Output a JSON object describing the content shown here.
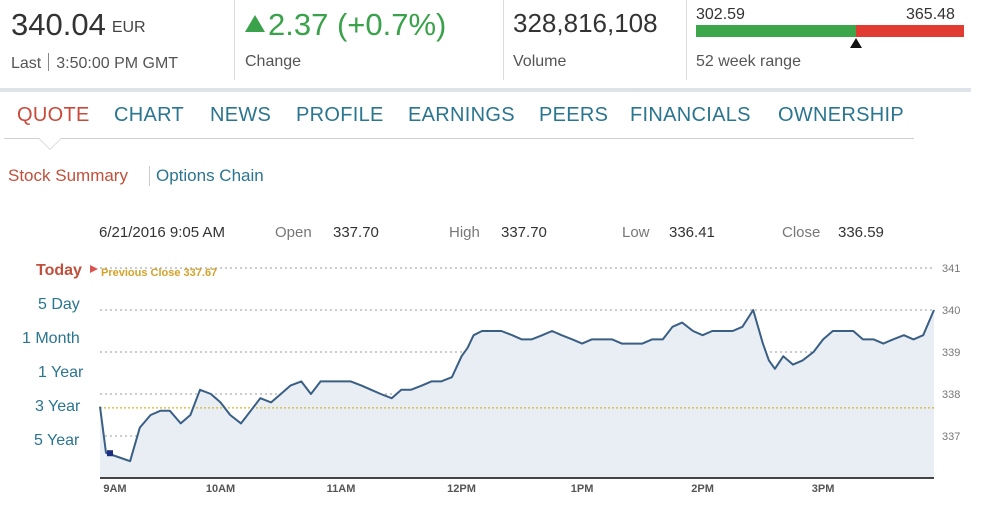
{
  "summary": {
    "price": "340.04",
    "currency": "EUR",
    "last_label": "Last",
    "last_time": "3:50:00 PM GMT",
    "change_value": "2.37 (+0.7%)",
    "change_label": "Change",
    "volume_value": "328,816,108",
    "volume_label": "Volume",
    "range_low": "302.59",
    "range_high": "365.48",
    "range_label": "52 week range",
    "range_position": 0.597,
    "colors": {
      "up": "#3aa24a",
      "bar_low": "#3ba64a",
      "bar_high": "#e03c31"
    }
  },
  "tabs": [
    {
      "label": "QUOTE",
      "active": true
    },
    {
      "label": "CHART",
      "active": false
    },
    {
      "label": "NEWS",
      "active": false
    },
    {
      "label": "PROFILE",
      "active": false
    },
    {
      "label": "EARNINGS",
      "active": false
    },
    {
      "label": "PEERS",
      "active": false
    },
    {
      "label": "FINANCIALS",
      "active": false
    },
    {
      "label": "OWNERSHIP",
      "active": false
    }
  ],
  "subtabs": [
    {
      "label": "Stock Summary",
      "active": true
    },
    {
      "label": "Options Chain",
      "active": false
    }
  ],
  "chart_info": {
    "datetime": "6/21/2016 9:05 AM",
    "open_label": "Open",
    "open_value": "337.70",
    "high_label": "High",
    "high_value": "337.70",
    "low_label": "Low",
    "low_value": "336.41",
    "close_label": "Close",
    "close_value": "336.59"
  },
  "range_links": [
    {
      "label": "Today",
      "active": true
    },
    {
      "label": "5 Day",
      "active": false
    },
    {
      "label": "1 Month",
      "active": false
    },
    {
      "label": "1 Year",
      "active": false
    },
    {
      "label": "3 Year",
      "active": false
    },
    {
      "label": "5 Year",
      "active": false
    }
  ],
  "chart_data": {
    "type": "area",
    "title": "",
    "xlabel": "",
    "ylabel": "",
    "x_ticks": [
      "9AM",
      "10AM",
      "11AM",
      "12PM",
      "1PM",
      "2PM",
      "3PM"
    ],
    "y_ticks": [
      337,
      338,
      339,
      340,
      341
    ],
    "ylim": [
      336.0,
      341.0
    ],
    "xlim_hours": [
      9.0,
      15.92
    ],
    "grid": true,
    "previous_close": 337.67,
    "previous_close_label": "Previous Close 337.67",
    "highlight_point": {
      "time": "9:05 AM",
      "value": 336.59
    },
    "series": [
      {
        "x": [
          9.0,
          9.05,
          9.15,
          9.25,
          9.33,
          9.42,
          9.5,
          9.58,
          9.67,
          9.75,
          9.83,
          9.92,
          10.0,
          10.08,
          10.17,
          10.25,
          10.33,
          10.42,
          10.5,
          10.58,
          10.67,
          10.75,
          10.83,
          10.92,
          11.0,
          11.08,
          11.17,
          11.25,
          11.33,
          11.42,
          11.5,
          11.58,
          11.67,
          11.75,
          11.83,
          11.92,
          12.0,
          12.05,
          12.1,
          12.17,
          12.25,
          12.33,
          12.42,
          12.5,
          12.58,
          12.67,
          12.75,
          12.83,
          12.92,
          13.0,
          13.08,
          13.17,
          13.25,
          13.33,
          13.42,
          13.5,
          13.58,
          13.67,
          13.75,
          13.83,
          13.92,
          14.0,
          14.08,
          14.17,
          14.25,
          14.33,
          14.42,
          14.5,
          14.55,
          14.6,
          14.67,
          14.75,
          14.83,
          14.92,
          15.0,
          15.08,
          15.17,
          15.25,
          15.33,
          15.42,
          15.5,
          15.58,
          15.67,
          15.75,
          15.83,
          15.92
        ],
        "values": [
          337.7,
          336.6,
          336.5,
          336.4,
          337.2,
          337.5,
          337.6,
          337.6,
          337.3,
          337.5,
          338.1,
          338.0,
          337.8,
          337.5,
          337.3,
          337.6,
          337.9,
          337.8,
          338.0,
          338.2,
          338.3,
          338.0,
          338.3,
          338.3,
          338.3,
          338.3,
          338.2,
          338.1,
          338.0,
          337.9,
          338.1,
          338.1,
          338.2,
          338.3,
          338.3,
          338.4,
          338.9,
          339.1,
          339.4,
          339.5,
          339.5,
          339.5,
          339.4,
          339.3,
          339.3,
          339.4,
          339.5,
          339.4,
          339.3,
          339.2,
          339.3,
          339.3,
          339.3,
          339.2,
          339.2,
          339.2,
          339.3,
          339.3,
          339.6,
          339.7,
          339.5,
          339.4,
          339.5,
          339.5,
          339.5,
          339.6,
          340.0,
          339.2,
          338.8,
          338.6,
          338.9,
          338.7,
          338.8,
          339.0,
          339.3,
          339.5,
          339.5,
          339.5,
          339.3,
          339.3,
          339.2,
          339.3,
          339.4,
          339.3,
          339.4,
          340.0
        ]
      }
    ],
    "colors": {
      "line": "#3a5f84",
      "fill": "#e8eef3",
      "grid": "#999999",
      "prev_close": "#d8b62a",
      "highlight": "#1b2d82"
    }
  }
}
